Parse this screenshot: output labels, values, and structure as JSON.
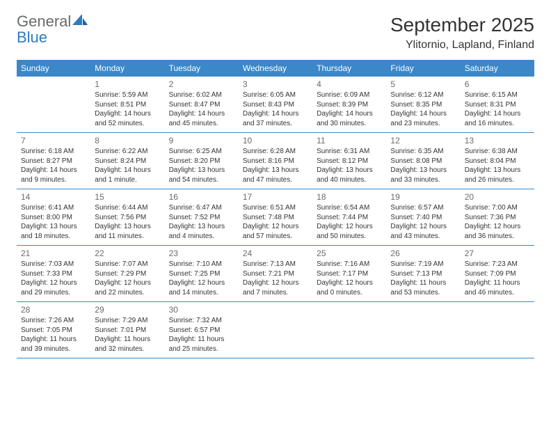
{
  "logo": {
    "general": "General",
    "blue": "Blue"
  },
  "title": "September 2025",
  "location": "Ylitornio, Lapland, Finland",
  "colors": {
    "header_bg": "#3b87c8",
    "header_text": "#ffffff",
    "daynum": "#6a6a6a",
    "body_bg": "#ffffff",
    "logo_gray": "#6a6a6a",
    "logo_blue": "#2f7bbf"
  },
  "day_names": [
    "Sunday",
    "Monday",
    "Tuesday",
    "Wednesday",
    "Thursday",
    "Friday",
    "Saturday"
  ],
  "weeks": [
    [
      null,
      {
        "n": "1",
        "sr": "Sunrise: 5:59 AM",
        "ss": "Sunset: 8:51 PM",
        "d1": "Daylight: 14 hours",
        "d2": "and 52 minutes."
      },
      {
        "n": "2",
        "sr": "Sunrise: 6:02 AM",
        "ss": "Sunset: 8:47 PM",
        "d1": "Daylight: 14 hours",
        "d2": "and 45 minutes."
      },
      {
        "n": "3",
        "sr": "Sunrise: 6:05 AM",
        "ss": "Sunset: 8:43 PM",
        "d1": "Daylight: 14 hours",
        "d2": "and 37 minutes."
      },
      {
        "n": "4",
        "sr": "Sunrise: 6:09 AM",
        "ss": "Sunset: 8:39 PM",
        "d1": "Daylight: 14 hours",
        "d2": "and 30 minutes."
      },
      {
        "n": "5",
        "sr": "Sunrise: 6:12 AM",
        "ss": "Sunset: 8:35 PM",
        "d1": "Daylight: 14 hours",
        "d2": "and 23 minutes."
      },
      {
        "n": "6",
        "sr": "Sunrise: 6:15 AM",
        "ss": "Sunset: 8:31 PM",
        "d1": "Daylight: 14 hours",
        "d2": "and 16 minutes."
      }
    ],
    [
      {
        "n": "7",
        "sr": "Sunrise: 6:18 AM",
        "ss": "Sunset: 8:27 PM",
        "d1": "Daylight: 14 hours",
        "d2": "and 9 minutes."
      },
      {
        "n": "8",
        "sr": "Sunrise: 6:22 AM",
        "ss": "Sunset: 8:24 PM",
        "d1": "Daylight: 14 hours",
        "d2": "and 1 minute."
      },
      {
        "n": "9",
        "sr": "Sunrise: 6:25 AM",
        "ss": "Sunset: 8:20 PM",
        "d1": "Daylight: 13 hours",
        "d2": "and 54 minutes."
      },
      {
        "n": "10",
        "sr": "Sunrise: 6:28 AM",
        "ss": "Sunset: 8:16 PM",
        "d1": "Daylight: 13 hours",
        "d2": "and 47 minutes."
      },
      {
        "n": "11",
        "sr": "Sunrise: 6:31 AM",
        "ss": "Sunset: 8:12 PM",
        "d1": "Daylight: 13 hours",
        "d2": "and 40 minutes."
      },
      {
        "n": "12",
        "sr": "Sunrise: 6:35 AM",
        "ss": "Sunset: 8:08 PM",
        "d1": "Daylight: 13 hours",
        "d2": "and 33 minutes."
      },
      {
        "n": "13",
        "sr": "Sunrise: 6:38 AM",
        "ss": "Sunset: 8:04 PM",
        "d1": "Daylight: 13 hours",
        "d2": "and 26 minutes."
      }
    ],
    [
      {
        "n": "14",
        "sr": "Sunrise: 6:41 AM",
        "ss": "Sunset: 8:00 PM",
        "d1": "Daylight: 13 hours",
        "d2": "and 18 minutes."
      },
      {
        "n": "15",
        "sr": "Sunrise: 6:44 AM",
        "ss": "Sunset: 7:56 PM",
        "d1": "Daylight: 13 hours",
        "d2": "and 11 minutes."
      },
      {
        "n": "16",
        "sr": "Sunrise: 6:47 AM",
        "ss": "Sunset: 7:52 PM",
        "d1": "Daylight: 13 hours",
        "d2": "and 4 minutes."
      },
      {
        "n": "17",
        "sr": "Sunrise: 6:51 AM",
        "ss": "Sunset: 7:48 PM",
        "d1": "Daylight: 12 hours",
        "d2": "and 57 minutes."
      },
      {
        "n": "18",
        "sr": "Sunrise: 6:54 AM",
        "ss": "Sunset: 7:44 PM",
        "d1": "Daylight: 12 hours",
        "d2": "and 50 minutes."
      },
      {
        "n": "19",
        "sr": "Sunrise: 6:57 AM",
        "ss": "Sunset: 7:40 PM",
        "d1": "Daylight: 12 hours",
        "d2": "and 43 minutes."
      },
      {
        "n": "20",
        "sr": "Sunrise: 7:00 AM",
        "ss": "Sunset: 7:36 PM",
        "d1": "Daylight: 12 hours",
        "d2": "and 36 minutes."
      }
    ],
    [
      {
        "n": "21",
        "sr": "Sunrise: 7:03 AM",
        "ss": "Sunset: 7:33 PM",
        "d1": "Daylight: 12 hours",
        "d2": "and 29 minutes."
      },
      {
        "n": "22",
        "sr": "Sunrise: 7:07 AM",
        "ss": "Sunset: 7:29 PM",
        "d1": "Daylight: 12 hours",
        "d2": "and 22 minutes."
      },
      {
        "n": "23",
        "sr": "Sunrise: 7:10 AM",
        "ss": "Sunset: 7:25 PM",
        "d1": "Daylight: 12 hours",
        "d2": "and 14 minutes."
      },
      {
        "n": "24",
        "sr": "Sunrise: 7:13 AM",
        "ss": "Sunset: 7:21 PM",
        "d1": "Daylight: 12 hours",
        "d2": "and 7 minutes."
      },
      {
        "n": "25",
        "sr": "Sunrise: 7:16 AM",
        "ss": "Sunset: 7:17 PM",
        "d1": "Daylight: 12 hours",
        "d2": "and 0 minutes."
      },
      {
        "n": "26",
        "sr": "Sunrise: 7:19 AM",
        "ss": "Sunset: 7:13 PM",
        "d1": "Daylight: 11 hours",
        "d2": "and 53 minutes."
      },
      {
        "n": "27",
        "sr": "Sunrise: 7:23 AM",
        "ss": "Sunset: 7:09 PM",
        "d1": "Daylight: 11 hours",
        "d2": "and 46 minutes."
      }
    ],
    [
      {
        "n": "28",
        "sr": "Sunrise: 7:26 AM",
        "ss": "Sunset: 7:05 PM",
        "d1": "Daylight: 11 hours",
        "d2": "and 39 minutes."
      },
      {
        "n": "29",
        "sr": "Sunrise: 7:29 AM",
        "ss": "Sunset: 7:01 PM",
        "d1": "Daylight: 11 hours",
        "d2": "and 32 minutes."
      },
      {
        "n": "30",
        "sr": "Sunrise: 7:32 AM",
        "ss": "Sunset: 6:57 PM",
        "d1": "Daylight: 11 hours",
        "d2": "and 25 minutes."
      },
      null,
      null,
      null,
      null
    ]
  ]
}
